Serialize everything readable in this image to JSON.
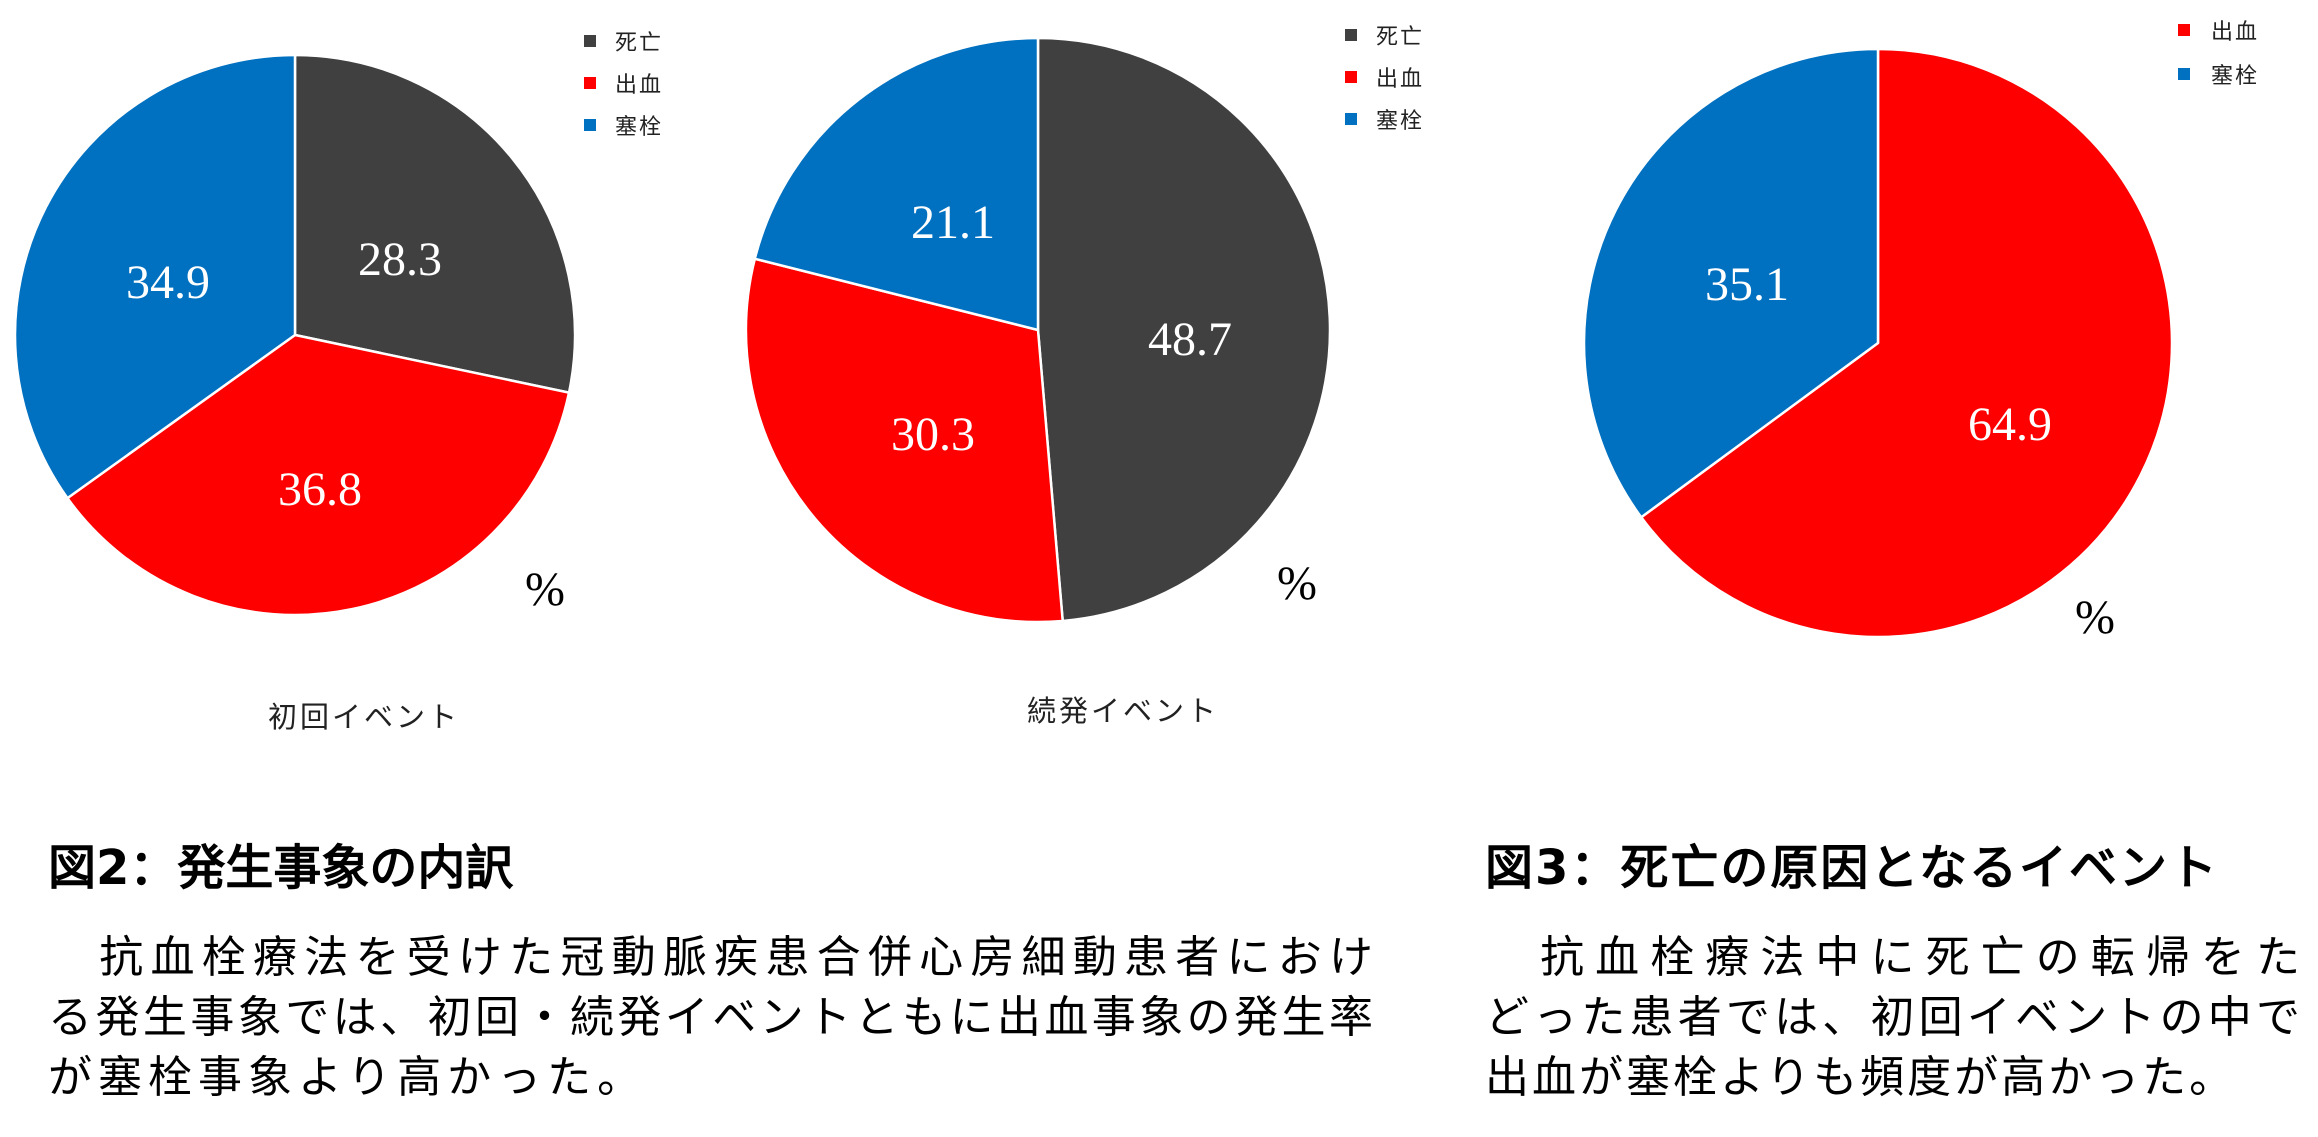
{
  "chart_data": [
    {
      "type": "pie",
      "title": "初回イベント",
      "unit": "%",
      "categories": [
        "死亡",
        "出血",
        "塞栓"
      ],
      "values": [
        28.3,
        36.8,
        34.9
      ],
      "colors": [
        "#404040",
        "#ff0000",
        "#0070c0"
      ],
      "legend_position": "top-right",
      "start_angle_deg": 0,
      "direction": "clockwise"
    },
    {
      "type": "pie",
      "title": "続発イベント",
      "unit": "%",
      "categories": [
        "死亡",
        "出血",
        "塞栓"
      ],
      "values": [
        48.7,
        30.3,
        21.1
      ],
      "colors": [
        "#404040",
        "#ff0000",
        "#0070c0"
      ],
      "legend_position": "top-right",
      "start_angle_deg": 0,
      "direction": "clockwise"
    },
    {
      "type": "pie",
      "title": "",
      "unit": "%",
      "categories": [
        "出血",
        "塞栓"
      ],
      "values": [
        64.9,
        35.1
      ],
      "colors": [
        "#ff0000",
        "#0070c0"
      ],
      "legend_position": "top-right",
      "start_angle_deg": 0,
      "direction": "clockwise"
    }
  ],
  "charts": {
    "pie1": {
      "caption": "初回イベント",
      "unit_label": "%",
      "labels": [
        "28.3",
        "36.8",
        "34.9"
      ],
      "legend": [
        "死亡",
        "出血",
        "塞栓"
      ]
    },
    "pie2": {
      "caption": "続発イベント",
      "unit_label": "%",
      "labels": [
        "48.7",
        "30.3",
        "21.1"
      ],
      "legend": [
        "死亡",
        "出血",
        "塞栓"
      ]
    },
    "pie3": {
      "unit_label": "%",
      "labels": [
        "64.9",
        "35.1"
      ],
      "legend": [
        "出血",
        "塞栓"
      ]
    }
  },
  "figure2": {
    "title": "図2：発生事象の内訳",
    "body_lines": [
      "　抗血栓療法を受けた冠動脈疾患合併心房細動患者におけ",
      "る発生事象では、初回・続発イベントともに出血事象の発生率",
      "が塞栓事象より高かった。"
    ]
  },
  "figure3": {
    "title": "図3：死亡の原因となるイベント",
    "body_lines": [
      "　抗血栓療法中に死亡の転帰をた",
      "どった患者では、初回イベントの中で",
      "出血が塞栓よりも頻度が高かった。"
    ]
  },
  "colors": {
    "death": "#404040",
    "bleeding": "#ff0000",
    "embolism": "#0070c0",
    "separator": "#ffffff"
  }
}
